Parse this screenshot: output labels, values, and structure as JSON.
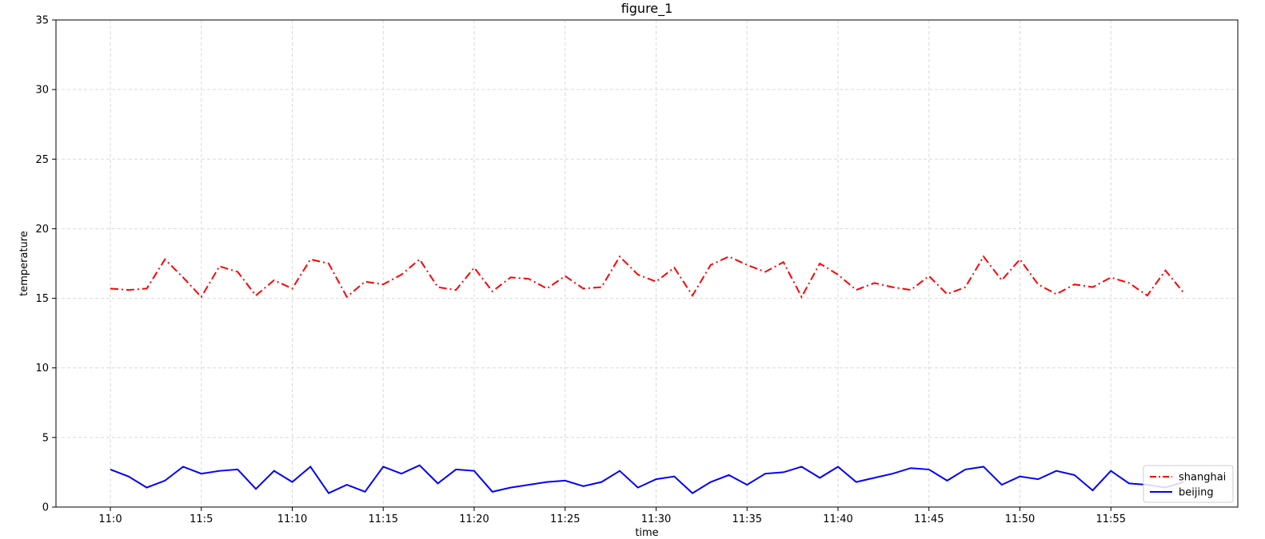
{
  "chart_data": {
    "type": "line",
    "title": "figure_1",
    "xlabel": "time",
    "ylabel": "temperature",
    "ylim": [
      0,
      35
    ],
    "yticks": [
      0,
      5,
      10,
      15,
      20,
      25,
      30,
      35
    ],
    "xtick_labels": [
      "11:0",
      "11:5",
      "11:10",
      "11:15",
      "11:20",
      "11:25",
      "11:30",
      "11:35",
      "11:40",
      "11:45",
      "11:50",
      "11:55"
    ],
    "x": [
      "11:0",
      "11:1",
      "11:2",
      "11:3",
      "11:4",
      "11:5",
      "11:6",
      "11:7",
      "11:8",
      "11:9",
      "11:10",
      "11:11",
      "11:12",
      "11:13",
      "11:14",
      "11:15",
      "11:16",
      "11:17",
      "11:18",
      "11:19",
      "11:20",
      "11:21",
      "11:22",
      "11:23",
      "11:24",
      "11:25",
      "11:26",
      "11:27",
      "11:28",
      "11:29",
      "11:30",
      "11:31",
      "11:32",
      "11:33",
      "11:34",
      "11:35",
      "11:36",
      "11:37",
      "11:38",
      "11:39",
      "11:40",
      "11:41",
      "11:42",
      "11:43",
      "11:44",
      "11:45",
      "11:46",
      "11:47",
      "11:48",
      "11:49",
      "11:50",
      "11:51",
      "11:52",
      "11:53",
      "11:54",
      "11:55",
      "11:56",
      "11:57",
      "11:58",
      "11:59"
    ],
    "grid": true,
    "legend_position": "lower-right",
    "series": [
      {
        "name": "shanghai",
        "color": "#ff0000",
        "linestyle": "dashdot",
        "values": [
          15.7,
          15.6,
          15.7,
          17.8,
          16.5,
          15.1,
          17.3,
          16.9,
          15.2,
          16.3,
          15.7,
          17.8,
          17.5,
          15.1,
          16.2,
          16.0,
          16.7,
          17.8,
          15.8,
          15.6,
          17.2,
          15.5,
          16.5,
          16.4,
          15.7,
          16.6,
          15.7,
          15.8,
          18.0,
          16.7,
          16.2,
          17.2,
          15.2,
          17.4,
          18.0,
          17.4,
          16.9,
          17.6,
          15.1,
          17.5,
          16.7,
          15.6,
          16.1,
          15.8,
          15.6,
          16.6,
          15.3,
          15.8,
          18.0,
          16.3,
          17.8,
          16.0,
          15.3,
          16.0,
          15.8,
          16.5,
          16.1,
          15.2,
          17.0,
          15.4
        ]
      },
      {
        "name": "beijing",
        "color": "#0000ff",
        "linestyle": "solid",
        "values": [
          2.7,
          2.2,
          1.4,
          1.9,
          2.9,
          2.4,
          2.6,
          2.7,
          1.3,
          2.6,
          1.8,
          2.9,
          1.0,
          1.6,
          1.1,
          2.9,
          2.4,
          3.0,
          1.7,
          2.7,
          2.6,
          1.1,
          1.4,
          1.6,
          1.8,
          1.9,
          1.5,
          1.8,
          2.6,
          1.4,
          2.0,
          2.2,
          1.0,
          1.8,
          2.3,
          1.6,
          2.4,
          2.5,
          2.9,
          2.1,
          2.9,
          1.8,
          2.1,
          2.4,
          2.8,
          2.7,
          1.9,
          2.7,
          2.9,
          1.6,
          2.2,
          2.0,
          2.6,
          2.3,
          1.2,
          2.6,
          1.7,
          1.6,
          1.4,
          1.8
        ]
      }
    ]
  }
}
